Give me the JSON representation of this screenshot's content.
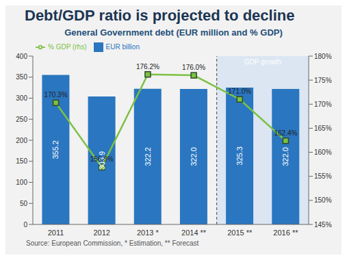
{
  "chart_data": {
    "type": "bar",
    "title": "Debt/GDP ratio is projected to decline",
    "subtitle": "General Government debt (EUR million and % GDP)",
    "categories": [
      "2011",
      "2012",
      "2013 *",
      "2014 **",
      "2015 **",
      "2016 **"
    ],
    "series": [
      {
        "name": "EUR billion",
        "type": "bar",
        "color": "#2a76c0",
        "values": [
          355.2,
          303.9,
          322.2,
          322.0,
          325.3,
          322.0
        ],
        "value_labels": [
          "355.2",
          "303.9",
          "322.2",
          "322.0",
          "325.3",
          "322.0"
        ]
      },
      {
        "name": "% GDP (rhs)",
        "type": "line",
        "axis": "y2",
        "color": "#7cc143",
        "marker": "square",
        "values": [
          170.3,
          156.9,
          176.2,
          176.0,
          171.0,
          162.4
        ],
        "value_labels": [
          "170.3%",
          "156.9%",
          "176.2%",
          "176.0%",
          "171.0%",
          "162.4%"
        ]
      }
    ],
    "ylim": [
      0,
      400
    ],
    "yticks": [
      0,
      50,
      100,
      150,
      200,
      250,
      300,
      350,
      400
    ],
    "y2lim": [
      145,
      180
    ],
    "y2ticks": [
      {
        "value": 145,
        "label": "145%"
      },
      {
        "value": 150,
        "label": "150%"
      },
      {
        "value": 155,
        "label": "155%"
      },
      {
        "value": 160,
        "label": "160%"
      },
      {
        "value": 165,
        "label": "165%"
      },
      {
        "value": 170,
        "label": "170%"
      },
      {
        "value": 175,
        "label": "175%"
      },
      {
        "value": 180,
        "label": "180%"
      }
    ],
    "data_labels": true,
    "legend": "upper left",
    "annotations": [
      "GDP growth",
      "Source: European Commission, * Estimation, ** Forecast"
    ]
  }
}
